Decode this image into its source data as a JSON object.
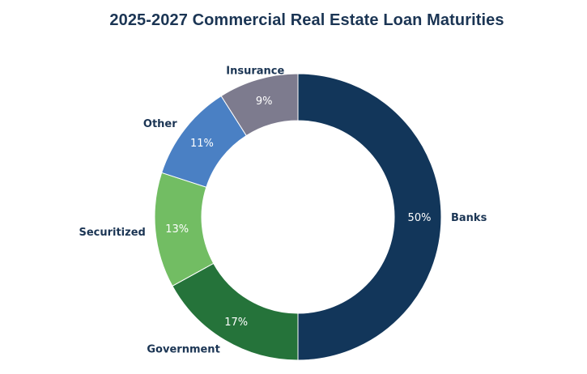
{
  "chart_data": {
    "type": "pie",
    "title": "2025-2027 Commercial Real Estate Loan Maturities",
    "donut": true,
    "start_angle_deg": 0,
    "direction": "clockwise",
    "categories": [
      "Banks",
      "Government",
      "Securitized",
      "Other",
      "Insurance"
    ],
    "values": [
      50,
      17,
      13,
      11,
      9
    ],
    "data_labels": [
      "50%",
      "17%",
      "13%",
      "11%",
      "9%"
    ],
    "colors": [
      "#12365a",
      "#25733a",
      "#72bd63",
      "#4a80c4",
      "#7d7b8e"
    ],
    "legend": "none"
  }
}
